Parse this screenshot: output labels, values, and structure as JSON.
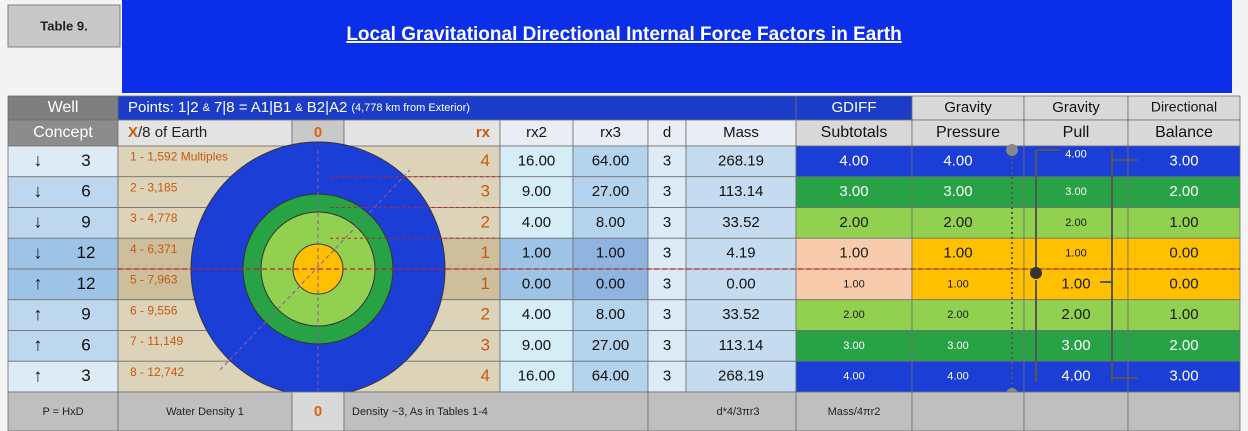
{
  "header": {
    "label": "Table 9.",
    "title": "Local Gravitational Directional Internal Force Factors in Earth"
  },
  "table": {
    "header_row_1": {
      "well": "Well",
      "points": [
        "Points: 1|2",
        "&",
        "7|8 = A1|B1",
        "&",
        "B2|A2",
        "(4,778 km from Exterior)"
      ],
      "gdiff": "GDIFF",
      "gravity_1": "Gravity",
      "gravity_2": "Gravity",
      "directional": "Directional"
    },
    "header_row_2": {
      "concept": "Concept",
      "x_mark": "X",
      "x_text": "/8 of Earth",
      "zero": "0",
      "rx": "rx",
      "rx2": "rx2",
      "rx3": "rx3",
      "d": "d",
      "mass": "Mass",
      "subtotals": "Subtotals",
      "pressure": "Pressure",
      "pull": "Pull",
      "balance": "Balance"
    },
    "rows": [
      [
        "↓",
        "3",
        "1 - 1,592 Multiples",
        "4",
        "16.00",
        "64.00",
        "3",
        "268.19",
        "4.00",
        "4.00",
        "4.00",
        "3.00"
      ],
      [
        "↓",
        "6",
        "2 - 3,185",
        "3",
        "9.00",
        "27.00",
        "3",
        "113.14",
        "3.00",
        "3.00",
        "3.00",
        "2.00"
      ],
      [
        "↓",
        "9",
        "3 - 4,778",
        "2",
        "4.00",
        "8.00",
        "3",
        "33.52",
        "2.00",
        "2.00",
        "2.00",
        "1.00"
      ],
      [
        "↓",
        "12",
        "4 - 6,371",
        "1",
        "1.00",
        "1.00",
        "3",
        "4.19",
        "1.00",
        "1.00",
        "1.00",
        "0.00"
      ],
      [
        "↑",
        "12",
        "5 - 7,963",
        "1",
        "0.00",
        "0.00",
        "3",
        "0.00",
        "1.00",
        "1.00",
        "1.00",
        "0.00"
      ],
      [
        "↑",
        "9",
        "6 - 9,556",
        "2",
        "4.00",
        "8.00",
        "3",
        "33.52",
        "2.00",
        "2.00",
        "2.00",
        "1.00"
      ],
      [
        "↑",
        "6",
        "7 - 11,149",
        "3",
        "9.00",
        "27.00",
        "3",
        "113.14",
        "3.00",
        "3.00",
        "3.00",
        "2.00"
      ],
      [
        "↑",
        "3",
        "8 - 12,742",
        "4",
        "16.00",
        "64.00",
        "3",
        "268.19",
        "4.00",
        "4.00",
        "4.00",
        "3.00"
      ]
    ],
    "footer": [
      "P = HxD",
      "Water Density 1",
      "0",
      "Density ~3, As in Tables 1-4",
      "d*4/3πr3",
      "Mass/4πr2"
    ]
  }
}
